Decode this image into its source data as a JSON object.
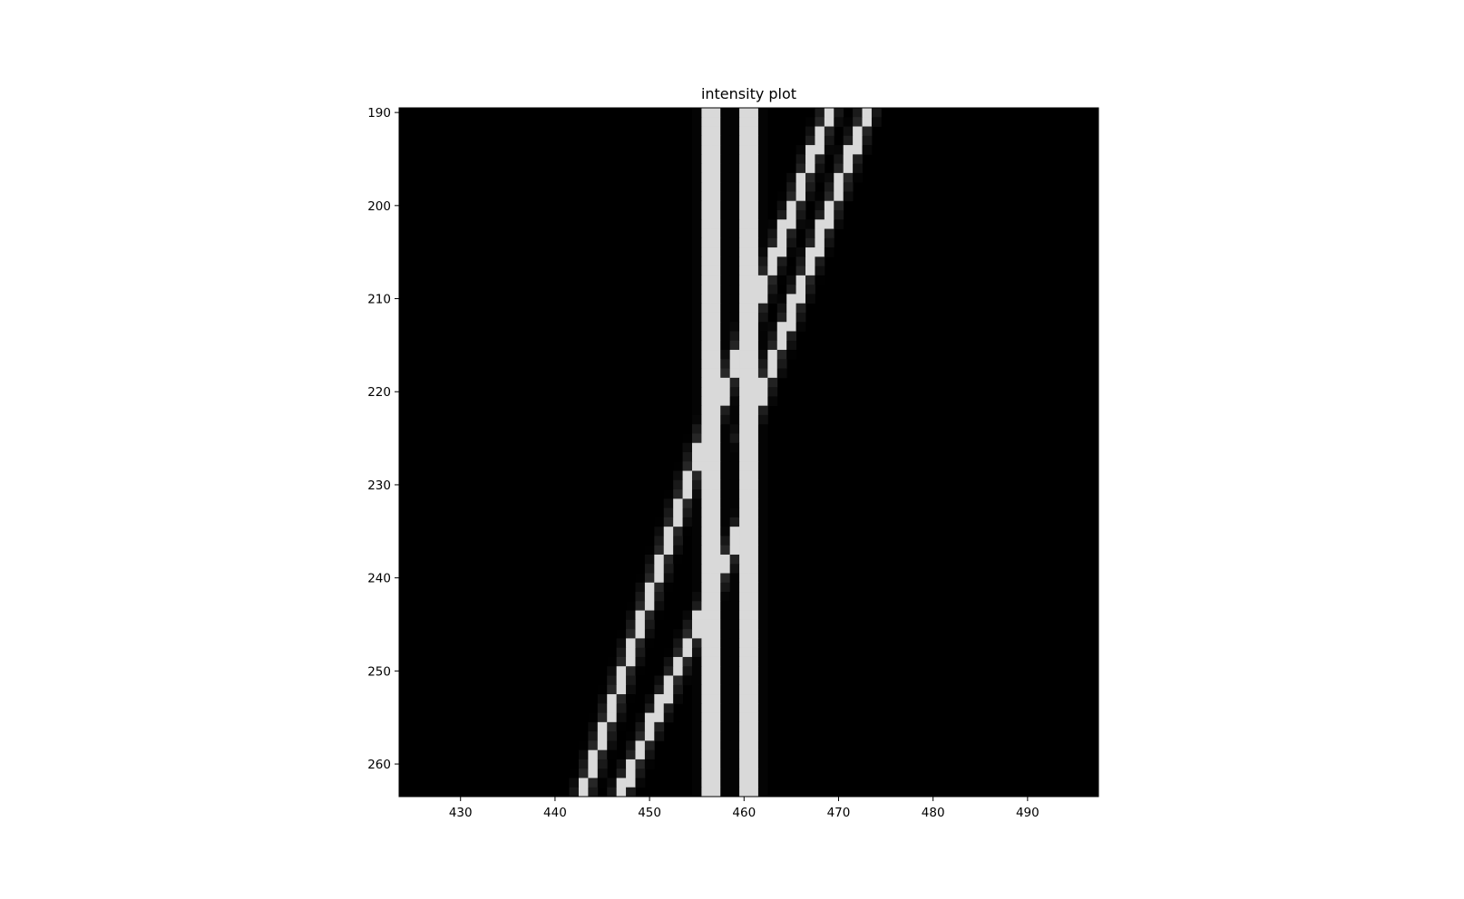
{
  "chart_data": {
    "type": "heatmap",
    "title": "intensity plot",
    "xlabel": "",
    "ylabel": "",
    "colormap": "gray",
    "xlim": [
      423.5,
      497.5
    ],
    "ylim": [
      263.5,
      189.5
    ],
    "xticks": [
      430,
      440,
      450,
      460,
      470,
      480,
      490
    ],
    "yticks": [
      190,
      200,
      210,
      220,
      230,
      240,
      250,
      260
    ],
    "background_value": 0.0,
    "features": [
      {
        "kind": "vertical_line",
        "x": 456.5,
        "y_range": [
          189.5,
          263.5
        ],
        "value": 0.85
      },
      {
        "kind": "vertical_line",
        "x": 460.5,
        "y_range": [
          189.5,
          263.5
        ],
        "value": 0.85
      },
      {
        "kind": "diagonal_line",
        "from": [
          469,
          190
        ],
        "to": [
          456,
          225
        ],
        "value": 0.85
      },
      {
        "kind": "diagonal_line",
        "from": [
          473,
          190
        ],
        "to": [
          460,
          225
        ],
        "value": 0.85
      },
      {
        "kind": "diagonal_line",
        "from": [
          456,
          224
        ],
        "to": [
          443,
          263
        ],
        "value": 0.85
      },
      {
        "kind": "diagonal_line",
        "from": [
          460,
          234
        ],
        "to": [
          447,
          263
        ],
        "value": 0.85
      }
    ],
    "grid": false
  }
}
